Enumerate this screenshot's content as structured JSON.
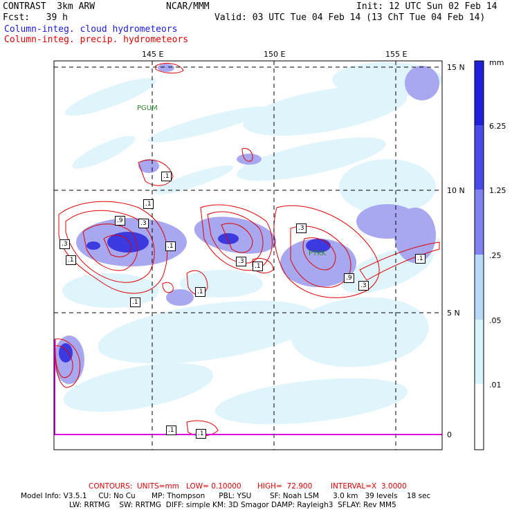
{
  "header": {
    "model": "CONTRAST  3km ARW",
    "org": "NCAR/MMM",
    "init": "Init: 12 UTC Sun 02 Feb 14",
    "fcst": "Fcst:   39 h",
    "valid": "Valid: 03 UTC Tue 04 Feb 14 (13 ChT Tue 04 Feb 14)",
    "field1": "Column-integ. cloud hydrometeors",
    "field2": "Column-integ. precip. hydrometeors"
  },
  "axes": {
    "lon_labels": [
      "145 E",
      "150 E",
      "155 E"
    ],
    "lat_labels": [
      "15 N",
      "10 N",
      "5 N",
      "0"
    ]
  },
  "map_labels": {
    "pgum": "PGUM",
    "ptkk": "PTKK"
  },
  "contour_labels": [
    ".1",
    ".1",
    ".9",
    ".3",
    ".3",
    ".1",
    ".1",
    ".1",
    ".1",
    ".3",
    ".3",
    ".9",
    ".3",
    ".1",
    ".1",
    ".1",
    ".1"
  ],
  "colorbar": {
    "unit": "mm",
    "levels": [
      "6.25",
      "1.25",
      ".25",
      ".05",
      ".01"
    ],
    "colors": [
      "#2020d8",
      "#4a4ae8",
      "#8080ee",
      "#b8d8f8",
      "#d8f4fb",
      "#ffffff"
    ]
  },
  "footer": {
    "contours": "CONTOURS:  UNITS=mm   LOW= 0.10000       HIGH=  72.900        INTERVAL=X  3.0000",
    "model_info": "Model Info: V3.5.1     CU: No Cu       MP: Thompson      PBL: YSU        SF: Noah LSM      3.0 km   39 levels    18 sec",
    "model_info2": "LW: RRTMG    SW: RRTMG  DIFF: simple KM: 3D Smagor DAMP: Rayleigh3  SFLAY: Rev MM5"
  }
}
